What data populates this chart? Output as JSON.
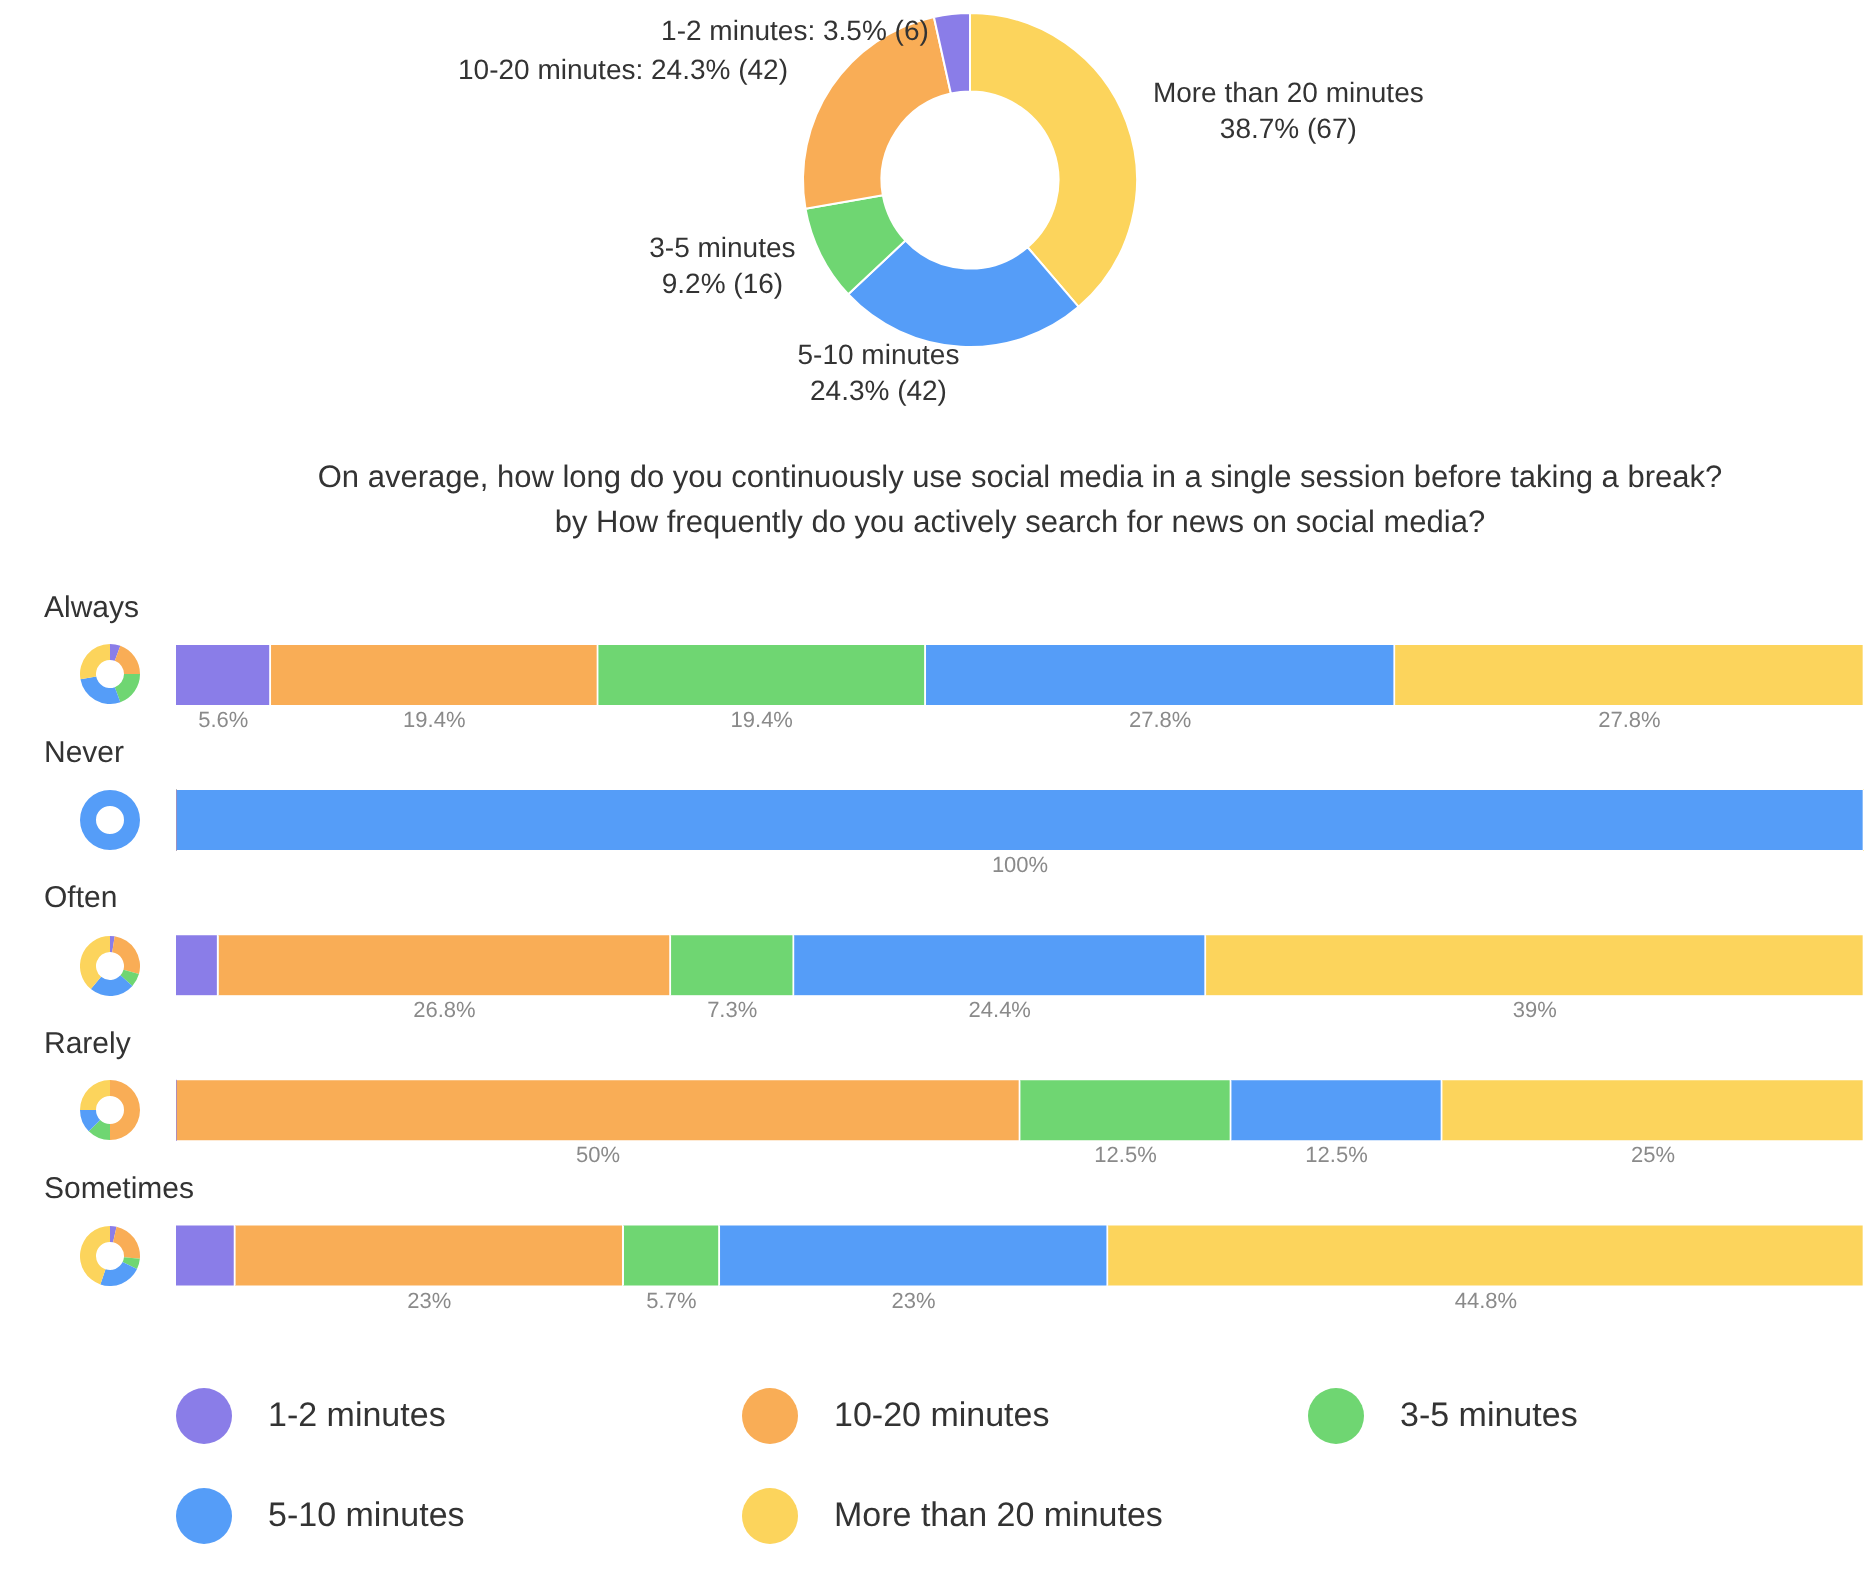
{
  "chart_data": [
    {
      "type": "donut",
      "categories": [
        "More than 20 minutes",
        "5-10 minutes",
        "3-5 minutes",
        "10-20 minutes",
        "1-2 minutes"
      ],
      "values": [
        67,
        42,
        16,
        42,
        6
      ],
      "colors": [
        "#fcd45c",
        "#559df8",
        "#6fd672",
        "#f9ad56",
        "#8a7de8"
      ],
      "value_labels": [
        "38.7% (67)",
        "24.3% (42)",
        "9.2% (16)",
        "24.3% (42)",
        "3.5% (6)"
      ],
      "legend": false
    },
    {
      "type": "bar",
      "orientation": "horizontal",
      "stacked": true,
      "title": "On average, how long do you continuously use social media in a single session before taking a break?",
      "subtitle": "by How frequently do you actively search for news on social media?",
      "categories": [
        "Always",
        "Never",
        "Often",
        "Rarely",
        "Sometimes"
      ],
      "xlim": [
        0,
        100
      ],
      "tick_labels": "y",
      "grid": false,
      "legend": "bottom",
      "series": [
        {
          "name": "1-2 minutes",
          "color": "#8a7de8",
          "values": [
            5.6,
            0,
            2.5,
            0,
            3.5
          ],
          "value_labels": [
            "5.6%",
            null,
            null,
            null,
            null
          ]
        },
        {
          "name": "10-20 minutes",
          "color": "#f9ad56",
          "values": [
            19.4,
            0,
            26.8,
            50,
            23
          ],
          "value_labels": [
            "19.4%",
            null,
            "26.8%",
            "50%",
            "23%"
          ]
        },
        {
          "name": "3-5 minutes",
          "color": "#6fd672",
          "values": [
            19.4,
            0,
            7.3,
            12.5,
            5.7
          ],
          "value_labels": [
            "19.4%",
            null,
            "7.3%",
            "12.5%",
            "5.7%"
          ]
        },
        {
          "name": "5-10 minutes",
          "color": "#559df8",
          "values": [
            27.8,
            100,
            24.4,
            12.5,
            23
          ],
          "value_labels": [
            "27.8%",
            "100%",
            "24.4%",
            "12.5%",
            "23%"
          ]
        },
        {
          "name": "More than 20 minutes",
          "color": "#fcd45c",
          "values": [
            27.8,
            0,
            39,
            25,
            44.8
          ],
          "value_labels": [
            "27.8%",
            null,
            "39%",
            "25%",
            "44.8%"
          ]
        }
      ]
    }
  ]
}
